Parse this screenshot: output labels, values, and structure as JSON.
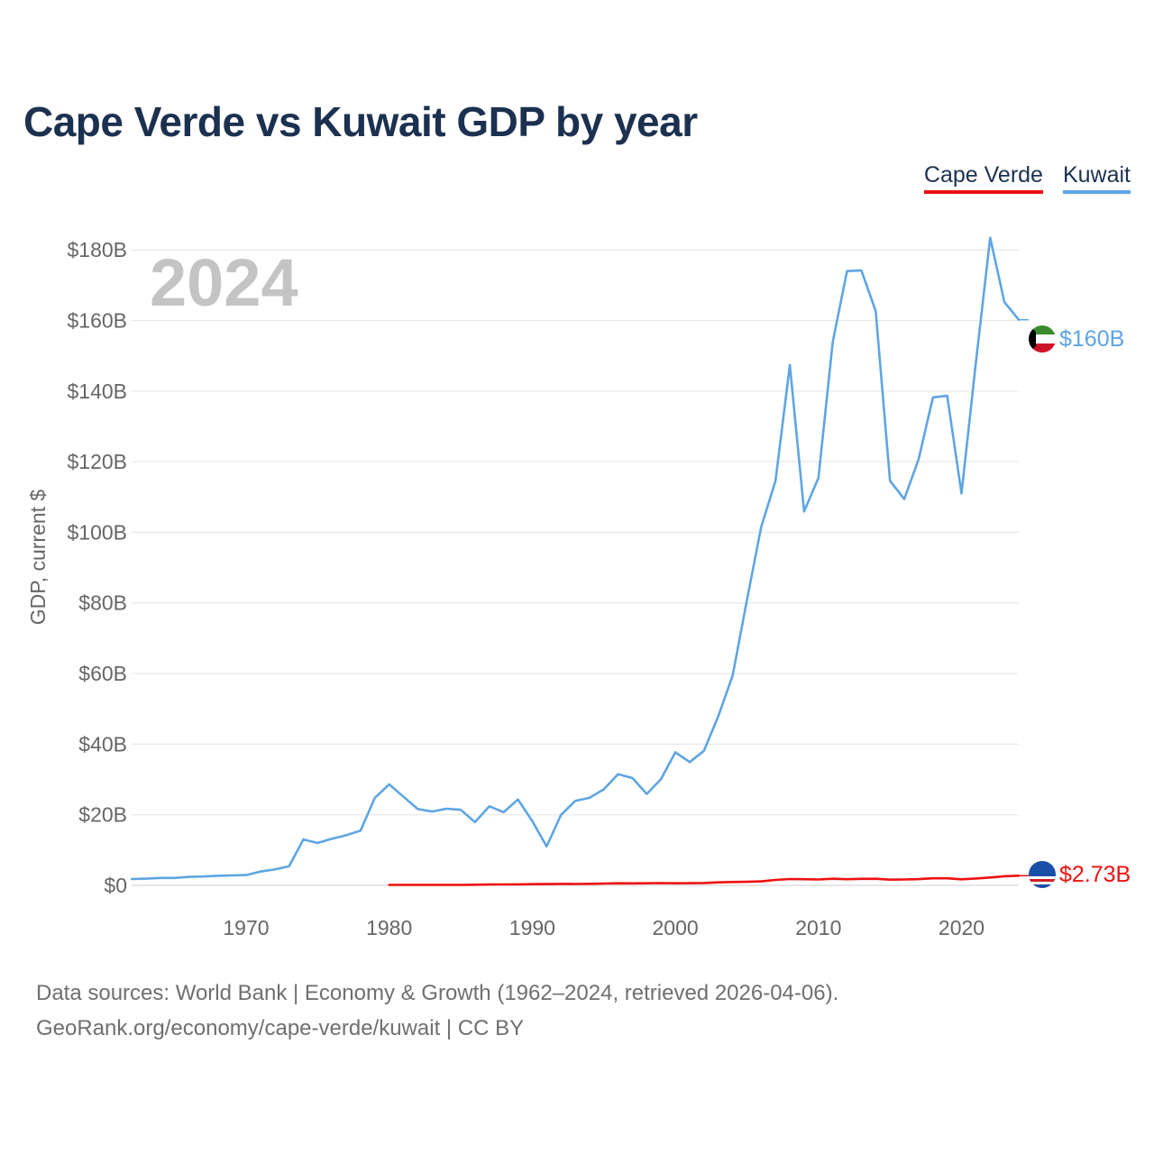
{
  "title": "Cape Verde vs Kuwait GDP by year",
  "legend": [
    {
      "name": "Cape Verde",
      "color": "#ee1111"
    },
    {
      "name": "Kuwait",
      "color": "#5ea5e3"
    }
  ],
  "year_watermark": "2024",
  "footer": {
    "line1": "Data sources: World Bank | Economy & Growth (1962–2024, retrieved 2026-04-06).",
    "line2": "GeoRank.org/economy/cape-verde/kuwait | CC BY"
  },
  "chart_data": {
    "type": "line",
    "title": "Cape Verde vs Kuwait GDP by year",
    "xlabel": "",
    "ylabel": "GDP, current $",
    "xlim": [
      1962,
      2024
    ],
    "ylim": [
      0,
      190
    ],
    "y_unit": "billions USD",
    "y_ticks": [
      0,
      20,
      40,
      60,
      80,
      100,
      120,
      140,
      160,
      180
    ],
    "y_tick_labels": [
      "$0",
      "$20B",
      "$40B",
      "$60B",
      "$80B",
      "$100B",
      "$120B",
      "$140B",
      "$160B",
      "$180B"
    ],
    "x_ticks": [
      1970,
      1980,
      1990,
      2000,
      2010,
      2020
    ],
    "x_tick_labels": [
      "1970",
      "1980",
      "1990",
      "2000",
      "2010",
      "2020"
    ],
    "grid": true,
    "legend_position": "top-right",
    "series": [
      {
        "name": "Kuwait",
        "color": "#5ea5e3",
        "end_label": "$160B",
        "flag": "kuwait-flag-icon",
        "x": [
          1962,
          1963,
          1964,
          1965,
          1966,
          1967,
          1968,
          1969,
          1970,
          1971,
          1972,
          1973,
          1974,
          1975,
          1976,
          1977,
          1978,
          1979,
          1980,
          1981,
          1982,
          1983,
          1984,
          1985,
          1986,
          1987,
          1988,
          1989,
          1990,
          1991,
          1992,
          1993,
          1994,
          1995,
          1996,
          1997,
          1998,
          1999,
          2000,
          2001,
          2002,
          2003,
          2004,
          2005,
          2006,
          2007,
          2008,
          2009,
          2010,
          2011,
          2012,
          2013,
          2014,
          2015,
          2016,
          2017,
          2018,
          2019,
          2020,
          2021,
          2022,
          2023,
          2024
        ],
        "values": [
          1.8,
          1.9,
          2.1,
          2.1,
          2.4,
          2.5,
          2.7,
          2.8,
          2.9,
          3.9,
          4.5,
          5.4,
          13.0,
          12.0,
          13.2,
          14.2,
          15.5,
          24.8,
          28.6,
          25.1,
          21.6,
          20.9,
          21.7,
          21.4,
          17.9,
          22.4,
          20.7,
          24.3,
          18.2,
          11.0,
          19.9,
          23.9,
          24.8,
          27.2,
          31.5,
          30.4,
          25.9,
          30.1,
          37.7,
          34.9,
          38.1,
          47.9,
          59.4,
          80.8,
          101.5,
          114.6,
          147.4,
          105.9,
          115.4,
          154.0,
          174.0,
          174.2,
          162.7,
          114.6,
          109.4,
          120.7,
          138.2,
          138.7,
          111.0,
          148.0,
          183.4,
          165.2,
          160.2
        ]
      },
      {
        "name": "Cape Verde",
        "color": "#ee1111",
        "end_label": "$2.73B",
        "flag": "cape-verde-flag-icon",
        "x": [
          1980,
          1981,
          1982,
          1983,
          1984,
          1985,
          1986,
          1987,
          1988,
          1989,
          1990,
          1991,
          1992,
          1993,
          1994,
          1995,
          1996,
          1997,
          1998,
          1999,
          2000,
          2001,
          2002,
          2003,
          2004,
          2005,
          2006,
          2007,
          2008,
          2009,
          2010,
          2011,
          2012,
          2013,
          2014,
          2015,
          2016,
          2017,
          2018,
          2019,
          2020,
          2021,
          2022,
          2023,
          2024
        ],
        "values": [
          0.14,
          0.14,
          0.14,
          0.14,
          0.13,
          0.14,
          0.19,
          0.23,
          0.26,
          0.27,
          0.34,
          0.35,
          0.4,
          0.38,
          0.44,
          0.52,
          0.59,
          0.56,
          0.6,
          0.63,
          0.59,
          0.61,
          0.67,
          0.84,
          0.94,
          1.0,
          1.12,
          1.52,
          1.79,
          1.73,
          1.66,
          1.86,
          1.74,
          1.85,
          1.86,
          1.6,
          1.65,
          1.77,
          1.99,
          1.98,
          1.7,
          1.94,
          2.23,
          2.59,
          2.73
        ]
      }
    ]
  }
}
